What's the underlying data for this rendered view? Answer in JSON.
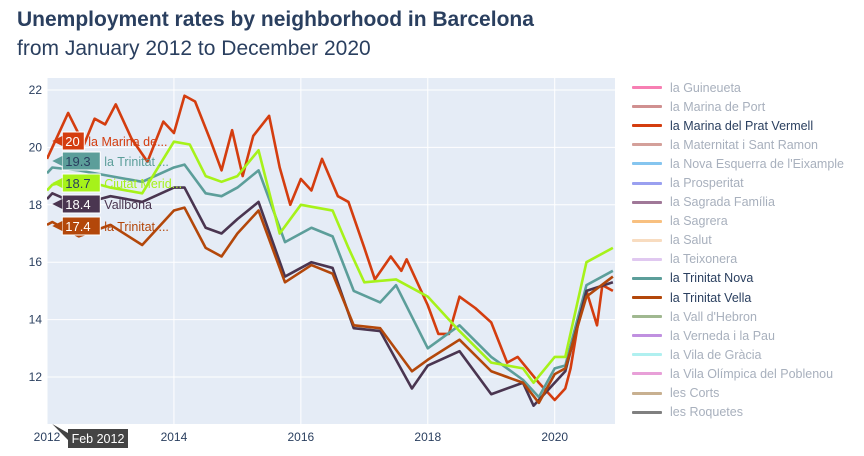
{
  "title": "Unemployment rates by neighborhood in Barcelona",
  "subtitle": "from January 2012 to December 2020",
  "hover": {
    "date": "Feb 2012",
    "labels": [
      {
        "value": "20",
        "name": "la Marina de...",
        "color": "#d43d0f",
        "text": "#ffffff",
        "ncolor": "#d43d0f"
      },
      {
        "value": "19.3",
        "name": "la Trinitat ...",
        "color": "#5c9e9a",
        "text": "#2a3f5f",
        "ncolor": "#5c9e9a"
      },
      {
        "value": "18.7",
        "name": "Ciutat Merid...",
        "color": "#a6f21a",
        "text": "#2a3f5f",
        "ncolor": "#a6f21a"
      },
      {
        "value": "18.4",
        "name": "Vallbona",
        "color": "#4a3550",
        "text": "#ffffff",
        "ncolor": "#4a3550"
      },
      {
        "value": "17.4",
        "name": "la Trinitat ...",
        "color": "#b3470a",
        "text": "#ffffff",
        "ncolor": "#b3470a"
      }
    ]
  },
  "chart_data": {
    "type": "line",
    "title": "Unemployment rates by neighborhood in Barcelona",
    "xlim": [
      "2012-01",
      "2020-12"
    ],
    "ylim": [
      10.4,
      22.4
    ],
    "xticks": [
      "2012",
      "2014",
      "2016",
      "2018",
      "2020"
    ],
    "yticks": [
      12,
      14,
      16,
      18,
      20,
      22
    ],
    "grid": true,
    "legend_placement": "right",
    "series": [
      {
        "name": "la Marina del Prat Vermell",
        "color": "#d43d0f",
        "points": [
          [
            "2012-01",
            19.6
          ],
          [
            "2012-02",
            20
          ],
          [
            "2012-05",
            21.2
          ],
          [
            "2012-08",
            20.1
          ],
          [
            "2012-10",
            21
          ],
          [
            "2012-12",
            20.8
          ],
          [
            "2013-02",
            21.5
          ],
          [
            "2013-05",
            20.3
          ],
          [
            "2013-08",
            19.5
          ],
          [
            "2013-11",
            20.9
          ],
          [
            "2014-01",
            20.5
          ],
          [
            "2014-03",
            21.8
          ],
          [
            "2014-05",
            21.6
          ],
          [
            "2014-08",
            20.2
          ],
          [
            "2014-10",
            19.2
          ],
          [
            "2014-12",
            20.6
          ],
          [
            "2015-02",
            19
          ],
          [
            "2015-04",
            20.4
          ],
          [
            "2015-07",
            21.1
          ],
          [
            "2015-09",
            19.3
          ],
          [
            "2015-11",
            18
          ],
          [
            "2016-01",
            18.9
          ],
          [
            "2016-03",
            18.5
          ],
          [
            "2016-05",
            19.6
          ],
          [
            "2016-08",
            18.3
          ],
          [
            "2016-10",
            18.1
          ],
          [
            "2017-01",
            16.5
          ],
          [
            "2017-03",
            15.4
          ],
          [
            "2017-06",
            16.2
          ],
          [
            "2017-08",
            15.7
          ],
          [
            "2017-09",
            16.1
          ],
          [
            "2018-01",
            14.5
          ],
          [
            "2018-03",
            13.5
          ],
          [
            "2018-05",
            13.5
          ],
          [
            "2018-07",
            14.8
          ],
          [
            "2018-10",
            14.4
          ],
          [
            "2019-01",
            13.9
          ],
          [
            "2019-04",
            12.5
          ],
          [
            "2019-06",
            12.7
          ],
          [
            "2019-10",
            11.8
          ],
          [
            "2020-01",
            11.2
          ],
          [
            "2020-03",
            11.6
          ],
          [
            "2020-04",
            12.3
          ],
          [
            "2020-06",
            14.5
          ],
          [
            "2020-07",
            15
          ],
          [
            "2020-09",
            13.8
          ],
          [
            "2020-10",
            15.2
          ],
          [
            "2020-12",
            15
          ]
        ]
      },
      {
        "name": "la Trinitat Nova",
        "color": "#5c9e9a",
        "points": [
          [
            "2012-01",
            19.1
          ],
          [
            "2012-02",
            19.3
          ],
          [
            "2012-07",
            19.2
          ],
          [
            "2013-01",
            19
          ],
          [
            "2013-07",
            18.8
          ],
          [
            "2014-01",
            19.3
          ],
          [
            "2014-03",
            19.4
          ],
          [
            "2014-07",
            18.4
          ],
          [
            "2014-10",
            18.3
          ],
          [
            "2015-01",
            18.6
          ],
          [
            "2015-05",
            19.2
          ],
          [
            "2015-10",
            16.7
          ],
          [
            "2016-03",
            17.2
          ],
          [
            "2016-07",
            16.9
          ],
          [
            "2016-11",
            15
          ],
          [
            "2017-04",
            14.6
          ],
          [
            "2017-07",
            15.2
          ],
          [
            "2018-01",
            13
          ],
          [
            "2018-07",
            13.8
          ],
          [
            "2019-01",
            12.7
          ],
          [
            "2019-07",
            11.9
          ],
          [
            "2019-10",
            11.3
          ],
          [
            "2020-01",
            12.3
          ],
          [
            "2020-03",
            12.4
          ],
          [
            "2020-07",
            15.2
          ],
          [
            "2020-12",
            15.7
          ]
        ]
      },
      {
        "name": "Ciutat Meridiana",
        "color": "#a6f21a",
        "points": [
          [
            "2012-01",
            18.5
          ],
          [
            "2012-02",
            18.7
          ],
          [
            "2012-07",
            18.9
          ],
          [
            "2013-01",
            18.6
          ],
          [
            "2013-07",
            18.4
          ],
          [
            "2014-01",
            20.2
          ],
          [
            "2014-04",
            20.1
          ],
          [
            "2014-07",
            19
          ],
          [
            "2014-10",
            18.8
          ],
          [
            "2015-01",
            19
          ],
          [
            "2015-05",
            19.9
          ],
          [
            "2015-09",
            17
          ],
          [
            "2016-01",
            18
          ],
          [
            "2016-07",
            17.8
          ],
          [
            "2016-10",
            16.5
          ],
          [
            "2017-01",
            15.3
          ],
          [
            "2017-07",
            15.4
          ],
          [
            "2018-01",
            14.8
          ],
          [
            "2018-07",
            13.6
          ],
          [
            "2019-01",
            12.5
          ],
          [
            "2019-07",
            12.3
          ],
          [
            "2019-09",
            11.8
          ],
          [
            "2020-01",
            12.7
          ],
          [
            "2020-03",
            12.7
          ],
          [
            "2020-07",
            16
          ],
          [
            "2020-12",
            16.5
          ]
        ]
      },
      {
        "name": "Vallbona",
        "color": "#4a3550",
        "points": [
          [
            "2012-01",
            18.2
          ],
          [
            "2012-02",
            18.4
          ],
          [
            "2012-07",
            18
          ],
          [
            "2013-01",
            18.3
          ],
          [
            "2013-07",
            18.1
          ],
          [
            "2014-01",
            18.6
          ],
          [
            "2014-03",
            18.6
          ],
          [
            "2014-07",
            17.2
          ],
          [
            "2014-10",
            17
          ],
          [
            "2015-01",
            17.5
          ],
          [
            "2015-05",
            18.1
          ],
          [
            "2015-10",
            15.5
          ],
          [
            "2016-03",
            16
          ],
          [
            "2016-07",
            15.8
          ],
          [
            "2016-11",
            13.7
          ],
          [
            "2017-04",
            13.6
          ],
          [
            "2017-10",
            11.6
          ],
          [
            "2018-01",
            12.4
          ],
          [
            "2018-07",
            12.9
          ],
          [
            "2019-01",
            11.4
          ],
          [
            "2019-07",
            11.8
          ],
          [
            "2019-09",
            11
          ],
          [
            "2020-01",
            11.8
          ],
          [
            "2020-03",
            12.2
          ],
          [
            "2020-07",
            15
          ],
          [
            "2020-12",
            15.3
          ]
        ]
      },
      {
        "name": "la Trinitat Vella",
        "color": "#b3470a",
        "points": [
          [
            "2012-01",
            17.3
          ],
          [
            "2012-02",
            17.4
          ],
          [
            "2012-07",
            16.9
          ],
          [
            "2013-01",
            17.3
          ],
          [
            "2013-07",
            16.6
          ],
          [
            "2014-01",
            17.8
          ],
          [
            "2014-03",
            17.9
          ],
          [
            "2014-07",
            16.5
          ],
          [
            "2014-10",
            16.2
          ],
          [
            "2015-01",
            17
          ],
          [
            "2015-05",
            17.8
          ],
          [
            "2015-10",
            15.3
          ],
          [
            "2016-03",
            15.9
          ],
          [
            "2016-07",
            15.6
          ],
          [
            "2016-11",
            13.8
          ],
          [
            "2017-04",
            13.7
          ],
          [
            "2017-10",
            12.2
          ],
          [
            "2018-01",
            12.6
          ],
          [
            "2018-07",
            13.3
          ],
          [
            "2019-01",
            12.2
          ],
          [
            "2019-07",
            11.8
          ],
          [
            "2019-10",
            11.1
          ],
          [
            "2020-01",
            12.1
          ],
          [
            "2020-03",
            12.3
          ],
          [
            "2020-07",
            14.8
          ],
          [
            "2020-12",
            15.5
          ]
        ]
      }
    ],
    "legend": [
      {
        "name": "la Guineueta",
        "color": "#f77fb3",
        "active": false
      },
      {
        "name": "la Marina de Port",
        "color": "#d09090",
        "active": false
      },
      {
        "name": "la Marina del Prat Vermell",
        "color": "#d43d0f",
        "active": true
      },
      {
        "name": "la Maternitat i Sant Ramon",
        "color": "#d4a09a",
        "active": false
      },
      {
        "name": "la Nova Esquerra de l'Eixample",
        "color": "#85c5ef",
        "active": false
      },
      {
        "name": "la Prosperitat",
        "color": "#9aa0f0",
        "active": false
      },
      {
        "name": "la Sagrada Família",
        "color": "#a07898",
        "active": false
      },
      {
        "name": "la Sagrera",
        "color": "#f8c080",
        "active": false
      },
      {
        "name": "la Salut",
        "color": "#f8dcc0",
        "active": false
      },
      {
        "name": "la Teixonera",
        "color": "#e0c8f0",
        "active": false
      },
      {
        "name": "la Trinitat Nova",
        "color": "#5c9e9a",
        "active": true
      },
      {
        "name": "la Trinitat Vella",
        "color": "#b3470a",
        "active": true
      },
      {
        "name": "la Vall d'Hebron",
        "color": "#a0b890",
        "active": false
      },
      {
        "name": "la Verneda i la Pau",
        "color": "#c090e0",
        "active": false
      },
      {
        "name": "la Vila de Gràcia",
        "color": "#b0f0f0",
        "active": false
      },
      {
        "name": "la Vila Olímpica del Poblenou",
        "color": "#e8a0d8",
        "active": false
      },
      {
        "name": "les Corts",
        "color": "#c8b090",
        "active": false
      },
      {
        "name": "les Roquetes",
        "color": "#808080",
        "active": false
      }
    ]
  }
}
